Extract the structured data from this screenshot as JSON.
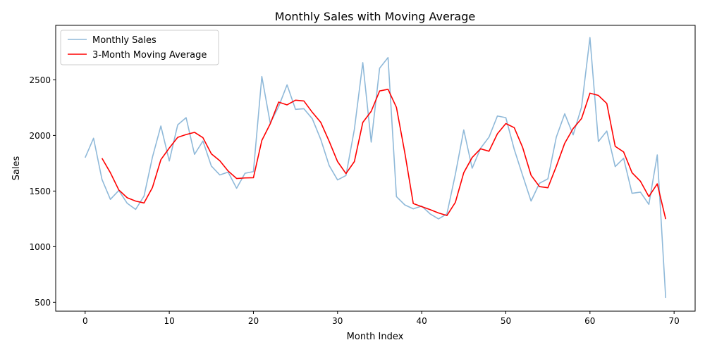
{
  "chart_data": {
    "type": "line",
    "title": "Monthly Sales with Moving Average",
    "xlabel": "Month Index",
    "ylabel": "Sales",
    "xlim": [
      -3.5,
      72.5
    ],
    "ylim": [
      420,
      2990
    ],
    "xticks": [
      0,
      10,
      20,
      30,
      40,
      50,
      60,
      70
    ],
    "yticks": [
      500,
      1000,
      1500,
      2000,
      2500
    ],
    "legend_position": "top-left",
    "grid": false,
    "series": [
      {
        "name": "Monthly Sales",
        "color": "#8fb9d9",
        "start_index": 0,
        "values": [
          1800,
          1975,
          1605,
          1425,
          1505,
          1390,
          1335,
          1455,
          1805,
          2085,
          1770,
          2095,
          2160,
          1830,
          1950,
          1725,
          1645,
          1670,
          1525,
          1660,
          1675,
          2530,
          2110,
          2260,
          2455,
          2235,
          2240,
          2150,
          1965,
          1730,
          1600,
          1640,
          2055,
          2655,
          1940,
          2605,
          2700,
          1450,
          1375,
          1340,
          1365,
          1295,
          1250,
          1295,
          1650,
          2050,
          1705,
          1885,
          1985,
          2175,
          2160,
          1875,
          1640,
          1410,
          1570,
          1610,
          1985,
          2195,
          2005,
          2255,
          2880,
          1945,
          2040,
          1720,
          1795,
          1480,
          1490,
          1380,
          1825,
          540
        ]
      },
      {
        "name": "3-Month Moving Average",
        "color": "#ff0000",
        "start_index": 2,
        "values": [
          1795,
          1665,
          1510,
          1440,
          1410,
          1393,
          1532,
          1782,
          1887,
          1983,
          2008,
          2028,
          1980,
          1835,
          1773,
          1680,
          1613,
          1618,
          1620,
          1955,
          2105,
          2300,
          2275,
          2317,
          2310,
          2208,
          2118,
          1948,
          1765,
          1657,
          1765,
          2117,
          2217,
          2400,
          2415,
          2252,
          1842,
          1388,
          1360,
          1333,
          1303,
          1280,
          1398,
          1665,
          1802,
          1880,
          1858,
          2015,
          2107,
          2070,
          1892,
          1642,
          1540,
          1530,
          1722,
          1930,
          2062,
          2152,
          2380,
          2360,
          2288,
          1902,
          1852,
          1665,
          1588,
          1450,
          1565,
          1248
        ]
      }
    ]
  }
}
